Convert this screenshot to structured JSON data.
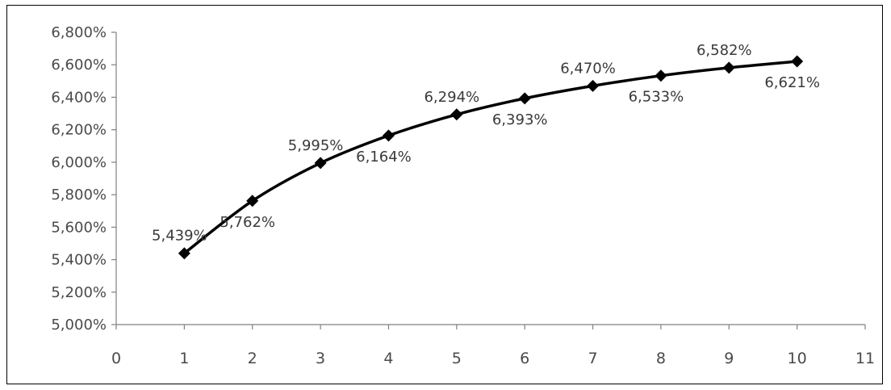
{
  "chart_data": {
    "type": "line",
    "title": "",
    "xlabel": "",
    "ylabel": "",
    "x": [
      1,
      2,
      3,
      4,
      5,
      6,
      7,
      8,
      9,
      10
    ],
    "series": [
      {
        "values": [
          5.439,
          5.762,
          5.995,
          6.164,
          6.294,
          6.393,
          6.47,
          6.533,
          6.582,
          6.621
        ],
        "labels": [
          "5,439%",
          "5,762%",
          "5,995%",
          "6,164%",
          "6,294%",
          "6,393%",
          "6,470%",
          "6,533%",
          "6,582%",
          "6,621%"
        ],
        "label_positions": [
          "above",
          "below",
          "above",
          "below",
          "above",
          "below",
          "above",
          "below",
          "above",
          "below"
        ],
        "color": "#000000",
        "marker": "diamond"
      }
    ],
    "xlim": [
      0,
      11
    ],
    "ylim": [
      5.0,
      6.8
    ],
    "x_ticks": [
      0,
      1,
      2,
      3,
      4,
      5,
      6,
      7,
      8,
      9,
      10,
      11
    ],
    "x_tick_labels": [
      "0",
      "1",
      "2",
      "3",
      "4",
      "5",
      "6",
      "7",
      "8",
      "9",
      "10",
      "11"
    ],
    "y_ticks": [
      5.0,
      5.2,
      5.4,
      5.6,
      5.8,
      6.0,
      6.2,
      6.4,
      6.6,
      6.8
    ],
    "y_tick_labels": [
      "5,000%",
      "5,200%",
      "5,400%",
      "5,600%",
      "5,800%",
      "6,000%",
      "6,200%",
      "6,400%",
      "6,600%",
      "6,800%"
    ],
    "grid": false,
    "legend": "none"
  }
}
